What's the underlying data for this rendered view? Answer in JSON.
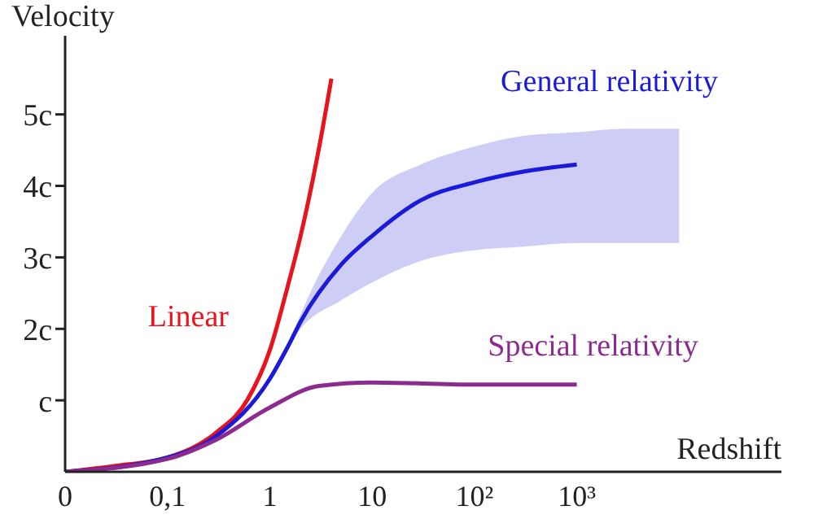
{
  "chart_data": {
    "type": "line",
    "xlabel": "Redshift",
    "ylabel": "Velocity",
    "log": "x",
    "xlim": [
      0.01,
      100000
    ],
    "xticks": [
      {
        "value": 0.01,
        "label": "0"
      },
      {
        "value": 0.1,
        "label": "0,1"
      },
      1,
      10,
      {
        "value": 100,
        "label": "10²"
      },
      {
        "value": 1000,
        "label": "10³"
      }
    ],
    "ylim": [
      0,
      6.1
    ],
    "yticks": [
      {
        "value": 1,
        "label": "c"
      },
      {
        "value": 2,
        "label": "2c"
      },
      {
        "value": 3,
        "label": "3c"
      },
      {
        "value": 4,
        "label": "4c"
      },
      {
        "value": 5,
        "label": "5c"
      }
    ],
    "grid": false,
    "legend": false,
    "marker": "none",
    "line_style": "solid",
    "series": [
      {
        "name": "Linear",
        "color": "#e8141b",
        "x": [
          0.01,
          0.03,
          0.1,
          0.3,
          0.6,
          1,
          1.5,
          2,
          3,
          4
        ],
        "values": [
          0,
          0.08,
          0.2,
          0.55,
          1.0,
          1.7,
          2.6,
          3.3,
          4.5,
          5.5
        ]
      },
      {
        "name": "General relativity",
        "color": "#1a1ad8",
        "x": [
          0.01,
          0.1,
          0.3,
          1,
          1.5,
          2,
          5,
          10,
          30,
          100,
          300,
          1000,
          3000,
          10000
        ],
        "values": [
          0,
          0.2,
          0.5,
          1.3,
          1.75,
          2.1,
          2.9,
          3.3,
          3.8,
          4.05,
          4.2,
          4.3,
          null,
          null
        ],
        "lower": [
          null,
          null,
          null,
          null,
          1.75,
          2.0,
          2.4,
          2.65,
          2.95,
          3.1,
          3.15,
          3.2,
          3.2,
          3.2
        ],
        "upper": [
          null,
          null,
          null,
          null,
          1.75,
          2.2,
          3.3,
          3.9,
          4.3,
          4.55,
          4.7,
          4.75,
          4.8,
          4.8
        ]
      },
      {
        "name": "Special relativity",
        "color": "#8b2a8f",
        "x": [
          0.01,
          0.1,
          0.3,
          1,
          3,
          10,
          100,
          1000
        ],
        "values": [
          0,
          0.18,
          0.45,
          0.9,
          1.2,
          1.25,
          1.22,
          1.22
        ]
      }
    ]
  }
}
